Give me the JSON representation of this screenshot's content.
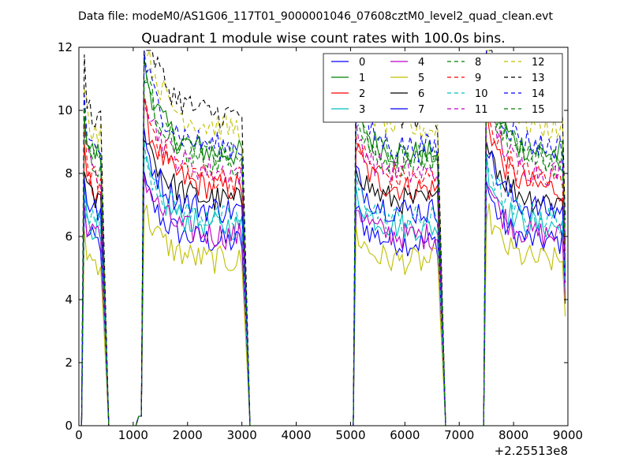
{
  "suptitle": "Data file: modeM0/AS1G06_117T01_9000001046_07608cztM0_level2_quad_clean.evt",
  "chart_data": {
    "type": "line",
    "title": "Quadrant 1 module wise count rates with 100.0s bins.",
    "xlabel": "",
    "ylabel": "",
    "x_offset_label": "+2.25513e8",
    "xlim": [
      0,
      9000
    ],
    "ylim": [
      0,
      12
    ],
    "xticks": [
      0,
      1000,
      2000,
      3000,
      4000,
      5000,
      6000,
      7000,
      8000,
      9000
    ],
    "xtick_labels": [
      "0",
      "1000",
      "2000",
      "3000",
      "4000",
      "5000",
      "6000",
      "7000",
      "8000",
      "9000"
    ],
    "yticks": [
      0,
      2,
      4,
      6,
      8,
      10,
      12
    ],
    "ytick_labels": [
      "0",
      "2",
      "4",
      "6",
      "8",
      "10",
      "12"
    ],
    "legend_position": "top-right",
    "series": [
      {
        "name": "0",
        "color": "#0000ff",
        "dash": "solid",
        "level": 5.8
      },
      {
        "name": "1",
        "color": "#008000",
        "dash": "solid",
        "level": 8.6
      },
      {
        "name": "2",
        "color": "#ff0000",
        "dash": "solid",
        "level": 7.5
      },
      {
        "name": "3",
        "color": "#00bfbf",
        "dash": "solid",
        "level": 6.3
      },
      {
        "name": "4",
        "color": "#bf00bf",
        "dash": "solid",
        "level": 6.0
      },
      {
        "name": "5",
        "color": "#bfbf00",
        "dash": "solid",
        "level": 5.2
      },
      {
        "name": "6",
        "color": "#000000",
        "dash": "solid",
        "level": 7.1
      },
      {
        "name": "7",
        "color": "#0000ff",
        "dash": "solid",
        "level": 6.8
      },
      {
        "name": "8",
        "color": "#008000",
        "dash": "dashed",
        "level": 8.3
      },
      {
        "name": "9",
        "color": "#ff0000",
        "dash": "dashed",
        "level": 7.8
      },
      {
        "name": "10",
        "color": "#00bfbf",
        "dash": "dashed",
        "level": 6.5
      },
      {
        "name": "11",
        "color": "#bf00bf",
        "dash": "dashed",
        "level": 8.0
      },
      {
        "name": "12",
        "color": "#bfbf00",
        "dash": "dashed",
        "level": 9.4
      },
      {
        "name": "13",
        "color": "#000000",
        "dash": "dashed",
        "level": 9.8
      },
      {
        "name": "14",
        "color": "#0000ff",
        "dash": "dashed",
        "level": 8.8
      },
      {
        "name": "15",
        "color": "#008000",
        "dash": "dashed",
        "level": 8.5
      }
    ],
    "segments": [
      {
        "start": 100,
        "end": 400,
        "spike": 1.0
      },
      {
        "start": 1200,
        "end": 3000,
        "spike": 1.15
      },
      {
        "start": 5100,
        "end": 6600,
        "spike": 1.0
      },
      {
        "start": 7500,
        "end": 8900,
        "spike": 1.15
      }
    ]
  }
}
